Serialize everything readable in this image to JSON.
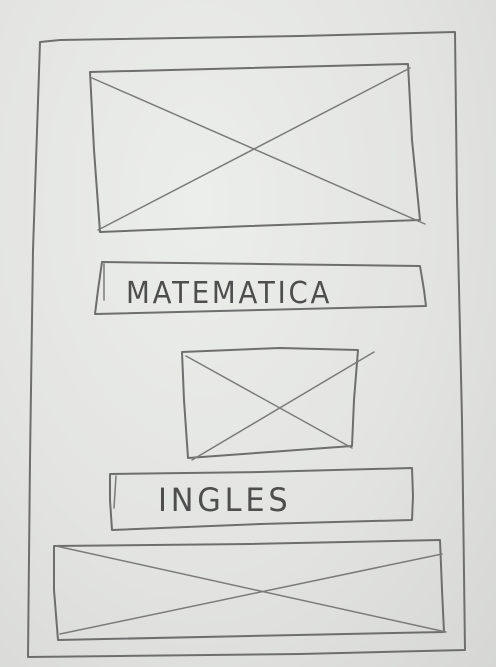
{
  "wireframe": {
    "items": [
      {
        "kind": "image-placeholder"
      },
      {
        "kind": "button",
        "label": "MATEMATICA"
      },
      {
        "kind": "image-placeholder"
      },
      {
        "kind": "button",
        "label": "INGLES"
      },
      {
        "kind": "image-placeholder"
      }
    ]
  },
  "colors": {
    "paper": "#e6e7e5",
    "pencil": "#6e6e6e"
  }
}
